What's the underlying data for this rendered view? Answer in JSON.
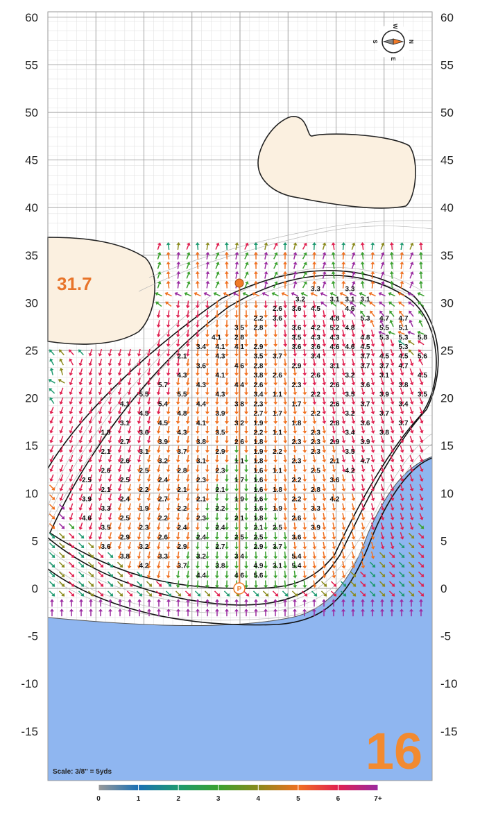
{
  "hole_number": "16",
  "green_depth": "31.7",
  "scale_text": "Scale: 3/8\" = 5yds",
  "y_axis_ticks": [
    "60",
    "55",
    "50",
    "45",
    "40",
    "35",
    "30",
    "25",
    "20",
    "15",
    "10",
    "5",
    "0",
    "-5",
    "-10",
    "-15"
  ],
  "legend": {
    "labels": [
      "0",
      "1",
      "2",
      "3",
      "4",
      "5",
      "6",
      "7+"
    ],
    "colors": [
      "#999999",
      "#1a6fb4",
      "#1e9a70",
      "#3aa12e",
      "#8a8a1c",
      "#f07020",
      "#e02050",
      "#9a2aa0"
    ]
  },
  "colors": {
    "water": "#8fb6f0",
    "bunker": "#fbf0e0",
    "grid_major": "#9a9a9a",
    "grid_minor": "#e3e3e3",
    "pin": "#f07a28",
    "hole_number": "#f28a30"
  },
  "icons": {
    "compass": "compass-icon",
    "pin": "pin-icon",
    "tee_marker": "p-marker-icon"
  },
  "compass_letters": [
    "W",
    "N",
    "E",
    "S"
  ],
  "slope_labels": [
    {
      "v": "3.3",
      "x": 10.0,
      "y": 31.1
    },
    {
      "v": "3.3",
      "x": 14.5,
      "y": 31.1
    },
    {
      "v": "3.2",
      "x": 8.0,
      "y": 30.0
    },
    {
      "v": "3.1",
      "x": 12.5,
      "y": 30.0
    },
    {
      "v": "3.1",
      "x": 14.5,
      "y": 30.0
    },
    {
      "v": "3.1",
      "x": 16.5,
      "y": 30.0
    },
    {
      "v": "2.6",
      "x": 5.0,
      "y": 29.0
    },
    {
      "v": "3.6",
      "x": 7.5,
      "y": 29.0
    },
    {
      "v": "4.5",
      "x": 10.0,
      "y": 29.0
    },
    {
      "v": "4.6",
      "x": 14.5,
      "y": 29.0
    },
    {
      "v": "2.2",
      "x": 2.5,
      "y": 28.0
    },
    {
      "v": "3.6",
      "x": 5.0,
      "y": 28.0
    },
    {
      "v": "4.8",
      "x": 12.5,
      "y": 28.0
    },
    {
      "v": "5.3",
      "x": 16.5,
      "y": 28.0
    },
    {
      "v": "4.7",
      "x": 19.0,
      "y": 28.0
    },
    {
      "v": "4.7",
      "x": 21.5,
      "y": 28.0
    },
    {
      "v": "3.5",
      "x": 0.0,
      "y": 27.0
    },
    {
      "v": "2.8",
      "x": 2.5,
      "y": 27.0
    },
    {
      "v": "3.6",
      "x": 7.5,
      "y": 27.0
    },
    {
      "v": "4.2",
      "x": 10.0,
      "y": 27.0
    },
    {
      "v": "5.2",
      "x": 12.5,
      "y": 27.0
    },
    {
      "v": "4.8",
      "x": 14.5,
      "y": 27.0
    },
    {
      "v": "5.5",
      "x": 19.0,
      "y": 27.0
    },
    {
      "v": "5.1",
      "x": 21.5,
      "y": 27.0
    },
    {
      "v": "4.1",
      "x": -3.0,
      "y": 26.0
    },
    {
      "v": "2.8",
      "x": 0.0,
      "y": 26.0
    },
    {
      "v": "3.5",
      "x": 7.5,
      "y": 26.0
    },
    {
      "v": "4.3",
      "x": 10.0,
      "y": 26.0
    },
    {
      "v": "4.3",
      "x": 12.5,
      "y": 26.0
    },
    {
      "v": "4.8",
      "x": 16.5,
      "y": 26.0
    },
    {
      "v": "5.3",
      "x": 19.0,
      "y": 26.0
    },
    {
      "v": "5.3",
      "x": 21.5,
      "y": 26.0
    },
    {
      "v": "5.8",
      "x": 24.0,
      "y": 26.0
    },
    {
      "v": "3.4",
      "x": -5.0,
      "y": 25.0
    },
    {
      "v": "4.1",
      "x": -2.5,
      "y": 25.0
    },
    {
      "v": "4.1",
      "x": 0.0,
      "y": 25.0
    },
    {
      "v": "2.9",
      "x": 2.5,
      "y": 25.0
    },
    {
      "v": "3.6",
      "x": 7.5,
      "y": 25.0
    },
    {
      "v": "3.6",
      "x": 10.0,
      "y": 25.0
    },
    {
      "v": "4.6",
      "x": 12.5,
      "y": 25.0
    },
    {
      "v": "4.6",
      "x": 14.5,
      "y": 25.0
    },
    {
      "v": "4.5",
      "x": 16.5,
      "y": 25.0
    },
    {
      "v": "5.3",
      "x": 21.5,
      "y": 25.0
    },
    {
      "v": "2.1",
      "x": -7.5,
      "y": 24.0
    },
    {
      "v": "4.3",
      "x": -2.5,
      "y": 24.0
    },
    {
      "v": "3.5",
      "x": 2.5,
      "y": 24.0
    },
    {
      "v": "3.7",
      "x": 5.0,
      "y": 24.0
    },
    {
      "v": "3.4",
      "x": 10.0,
      "y": 24.0
    },
    {
      "v": "3.7",
      "x": 16.5,
      "y": 24.0
    },
    {
      "v": "4.5",
      "x": 19.0,
      "y": 24.0
    },
    {
      "v": "4.5",
      "x": 21.5,
      "y": 24.0
    },
    {
      "v": "5.6",
      "x": 24.0,
      "y": 24.0
    },
    {
      "v": "3.6",
      "x": -5.0,
      "y": 23.0
    },
    {
      "v": "4.6",
      "x": 0.0,
      "y": 23.0
    },
    {
      "v": "2.8",
      "x": 2.5,
      "y": 23.0
    },
    {
      "v": "2.9",
      "x": 7.5,
      "y": 23.0
    },
    {
      "v": "3.1",
      "x": 12.5,
      "y": 23.0
    },
    {
      "v": "3.7",
      "x": 16.5,
      "y": 23.0
    },
    {
      "v": "3.7",
      "x": 19.0,
      "y": 23.0
    },
    {
      "v": "4.7",
      "x": 21.5,
      "y": 23.0
    },
    {
      "v": "4.3",
      "x": -7.5,
      "y": 22.0
    },
    {
      "v": "4.1",
      "x": -2.5,
      "y": 22.0
    },
    {
      "v": "3.8",
      "x": 2.5,
      "y": 22.0
    },
    {
      "v": "2.6",
      "x": 5.0,
      "y": 22.0
    },
    {
      "v": "2.6",
      "x": 10.0,
      "y": 22.0
    },
    {
      "v": "3.2",
      "x": 14.5,
      "y": 22.0
    },
    {
      "v": "3.1",
      "x": 19.0,
      "y": 22.0
    },
    {
      "v": "4.5",
      "x": 24.0,
      "y": 22.0
    },
    {
      "v": "5.7",
      "x": -10.0,
      "y": 21.0
    },
    {
      "v": "4.3",
      "x": -5.0,
      "y": 21.0
    },
    {
      "v": "4.4",
      "x": 0.0,
      "y": 21.0
    },
    {
      "v": "2.6",
      "x": 2.5,
      "y": 21.0
    },
    {
      "v": "2.3",
      "x": 7.5,
      "y": 21.0
    },
    {
      "v": "2.6",
      "x": 12.5,
      "y": 21.0
    },
    {
      "v": "3.6",
      "x": 16.5,
      "y": 21.0
    },
    {
      "v": "3.8",
      "x": 21.5,
      "y": 21.0
    },
    {
      "v": "5.5",
      "x": -12.5,
      "y": 20.0
    },
    {
      "v": "5.5",
      "x": -7.5,
      "y": 20.0
    },
    {
      "v": "4.3",
      "x": -2.5,
      "y": 20.0
    },
    {
      "v": "3.4",
      "x": 2.5,
      "y": 20.0
    },
    {
      "v": "1.1",
      "x": 5.0,
      "y": 20.0
    },
    {
      "v": "2.2",
      "x": 10.0,
      "y": 20.0
    },
    {
      "v": "3.5",
      "x": 14.5,
      "y": 20.0
    },
    {
      "v": "3.9",
      "x": 19.0,
      "y": 20.0
    },
    {
      "v": "3.5",
      "x": 24.0,
      "y": 20.0
    },
    {
      "v": "4.1",
      "x": -15.0,
      "y": 19.0
    },
    {
      "v": "5.4",
      "x": -10.0,
      "y": 19.0
    },
    {
      "v": "4.4",
      "x": -5.0,
      "y": 19.0
    },
    {
      "v": "3.8",
      "x": 0.0,
      "y": 19.0
    },
    {
      "v": "2.3",
      "x": 2.5,
      "y": 19.0
    },
    {
      "v": "1.7",
      "x": 7.5,
      "y": 19.0
    },
    {
      "v": "2.6",
      "x": 12.5,
      "y": 19.0
    },
    {
      "v": "3.7",
      "x": 16.5,
      "y": 19.0
    },
    {
      "v": "3.4",
      "x": 21.5,
      "y": 19.0
    },
    {
      "v": "4.5",
      "x": -12.5,
      "y": 18.0
    },
    {
      "v": "4.8",
      "x": -7.5,
      "y": 18.0
    },
    {
      "v": "3.9",
      "x": -2.5,
      "y": 18.0
    },
    {
      "v": "2.7",
      "x": 2.5,
      "y": 18.0
    },
    {
      "v": "1.7",
      "x": 5.0,
      "y": 18.0
    },
    {
      "v": "2.2",
      "x": 10.0,
      "y": 18.0
    },
    {
      "v": "3.2",
      "x": 14.5,
      "y": 18.0
    },
    {
      "v": "3.7",
      "x": 19.0,
      "y": 18.0
    },
    {
      "v": "3.1",
      "x": -15.0,
      "y": 17.0
    },
    {
      "v": "4.5",
      "x": -10.0,
      "y": 17.0
    },
    {
      "v": "4.1",
      "x": -5.0,
      "y": 17.0
    },
    {
      "v": "3.2",
      "x": 0.0,
      "y": 17.0
    },
    {
      "v": "1.9",
      "x": 2.5,
      "y": 17.0
    },
    {
      "v": "1.8",
      "x": 7.5,
      "y": 17.0
    },
    {
      "v": "2.8",
      "x": 12.5,
      "y": 17.0
    },
    {
      "v": "3.6",
      "x": 16.5,
      "y": 17.0
    },
    {
      "v": "3.7",
      "x": 21.5,
      "y": 17.0
    },
    {
      "v": "1.8",
      "x": -17.5,
      "y": 16.0
    },
    {
      "v": "3.6",
      "x": -12.5,
      "y": 16.0
    },
    {
      "v": "4.3",
      "x": -7.5,
      "y": 16.0
    },
    {
      "v": "3.5",
      "x": -2.5,
      "y": 16.0
    },
    {
      "v": "2.2",
      "x": 2.5,
      "y": 16.0
    },
    {
      "v": "1.1",
      "x": 5.0,
      "y": 16.0
    },
    {
      "v": "2.3",
      "x": 10.0,
      "y": 16.0
    },
    {
      "v": "3.4",
      "x": 14.5,
      "y": 16.0
    },
    {
      "v": "3.8",
      "x": 19.0,
      "y": 16.0
    },
    {
      "v": "2.7",
      "x": -15.0,
      "y": 15.0
    },
    {
      "v": "3.9",
      "x": -10.0,
      "y": 15.0
    },
    {
      "v": "3.8",
      "x": -5.0,
      "y": 15.0
    },
    {
      "v": "2.6",
      "x": 0.0,
      "y": 15.0
    },
    {
      "v": "1.8",
      "x": 2.5,
      "y": 15.0
    },
    {
      "v": "2.3",
      "x": 7.5,
      "y": 15.0
    },
    {
      "v": "2.3",
      "x": 10.0,
      "y": 15.0
    },
    {
      "v": "2.9",
      "x": 12.5,
      "y": 15.0
    },
    {
      "v": "3.9",
      "x": 16.5,
      "y": 15.0
    },
    {
      "v": "2.1",
      "x": -17.5,
      "y": 14.0
    },
    {
      "v": "3.1",
      "x": -12.5,
      "y": 14.0
    },
    {
      "v": "3.7",
      "x": -7.5,
      "y": 14.0
    },
    {
      "v": "2.9",
      "x": -2.5,
      "y": 14.0
    },
    {
      "v": "1.9",
      "x": 2.5,
      "y": 14.0
    },
    {
      "v": "2.2",
      "x": 5.0,
      "y": 14.0
    },
    {
      "v": "2.3",
      "x": 10.0,
      "y": 14.0
    },
    {
      "v": "3.5",
      "x": 14.5,
      "y": 14.0
    },
    {
      "v": "2.6",
      "x": -15.0,
      "y": 13.0
    },
    {
      "v": "3.2",
      "x": -10.0,
      "y": 13.0
    },
    {
      "v": "3.1",
      "x": -5.0,
      "y": 13.0
    },
    {
      "v": "1.1",
      "x": 0.0,
      "y": 13.0
    },
    {
      "v": "1.8",
      "x": 2.5,
      "y": 13.0
    },
    {
      "v": "2.3",
      "x": 7.5,
      "y": 13.0
    },
    {
      "v": "2.1",
      "x": 12.5,
      "y": 13.0
    },
    {
      "v": "4.7",
      "x": 16.5,
      "y": 13.0
    },
    {
      "v": "2.6",
      "x": -17.5,
      "y": 12.0
    },
    {
      "v": "2.5",
      "x": -12.5,
      "y": 12.0
    },
    {
      "v": "2.8",
      "x": -7.5,
      "y": 12.0
    },
    {
      "v": "2.3",
      "x": -2.5,
      "y": 12.0
    },
    {
      "v": "1.6",
      "x": 2.5,
      "y": 12.0
    },
    {
      "v": "1.1",
      "x": 5.0,
      "y": 12.0
    },
    {
      "v": "2.5",
      "x": 10.0,
      "y": 12.0
    },
    {
      "v": "4.2",
      "x": 14.5,
      "y": 12.0
    },
    {
      "v": "2.5",
      "x": -20.0,
      "y": 11.0
    },
    {
      "v": "2.5",
      "x": -15.0,
      "y": 11.0
    },
    {
      "v": "2.4",
      "x": -10.0,
      "y": 11.0
    },
    {
      "v": "2.3",
      "x": -5.0,
      "y": 11.0
    },
    {
      "v": "1.7",
      "x": 0.0,
      "y": 11.0
    },
    {
      "v": "1.6",
      "x": 2.5,
      "y": 11.0
    },
    {
      "v": "2.2",
      "x": 7.5,
      "y": 11.0
    },
    {
      "v": "3.6",
      "x": 12.5,
      "y": 11.0
    },
    {
      "v": "2.1",
      "x": -17.5,
      "y": 10.0
    },
    {
      "v": "2.2",
      "x": -12.5,
      "y": 10.0
    },
    {
      "v": "2.1",
      "x": -7.5,
      "y": 10.0
    },
    {
      "v": "2.1",
      "x": -2.5,
      "y": 10.0
    },
    {
      "v": "1.6",
      "x": 2.5,
      "y": 10.0
    },
    {
      "v": "1.8",
      "x": 5.0,
      "y": 10.0
    },
    {
      "v": "2.8",
      "x": 10.0,
      "y": 10.0
    },
    {
      "v": "3.9",
      "x": -20.0,
      "y": 9.0
    },
    {
      "v": "2.4",
      "x": -15.0,
      "y": 9.0
    },
    {
      "v": "2.7",
      "x": -10.0,
      "y": 9.0
    },
    {
      "v": "2.1",
      "x": -5.0,
      "y": 9.0
    },
    {
      "v": "1.9",
      "x": 0.0,
      "y": 9.0
    },
    {
      "v": "1.6",
      "x": 2.5,
      "y": 9.0
    },
    {
      "v": "2.2",
      "x": 7.5,
      "y": 9.0
    },
    {
      "v": "4.2",
      "x": 12.5,
      "y": 9.0
    },
    {
      "v": "3.3",
      "x": -17.5,
      "y": 8.0
    },
    {
      "v": "1.9",
      "x": -12.5,
      "y": 8.0
    },
    {
      "v": "2.2",
      "x": -7.5,
      "y": 8.0
    },
    {
      "v": "2.2",
      "x": -2.5,
      "y": 8.0
    },
    {
      "v": "1.6",
      "x": 2.5,
      "y": 8.0
    },
    {
      "v": "1.9",
      "x": 5.0,
      "y": 8.0
    },
    {
      "v": "3.3",
      "x": 10.0,
      "y": 8.0
    },
    {
      "v": "4.6",
      "x": -20.0,
      "y": 7.0
    },
    {
      "v": "2.5",
      "x": -15.0,
      "y": 7.0
    },
    {
      "v": "2.2",
      "x": -10.0,
      "y": 7.0
    },
    {
      "v": "2.3",
      "x": -5.0,
      "y": 7.0
    },
    {
      "v": "2.1",
      "x": 0.0,
      "y": 7.0
    },
    {
      "v": "1.8",
      "x": 2.5,
      "y": 7.0
    },
    {
      "v": "2.6",
      "x": 7.5,
      "y": 7.0
    },
    {
      "v": "3.5",
      "x": -17.5,
      "y": 6.0
    },
    {
      "v": "2.3",
      "x": -12.5,
      "y": 6.0
    },
    {
      "v": "2.4",
      "x": -7.5,
      "y": 6.0
    },
    {
      "v": "2.4",
      "x": -2.5,
      "y": 6.0
    },
    {
      "v": "2.1",
      "x": 2.5,
      "y": 6.0
    },
    {
      "v": "2.5",
      "x": 5.0,
      "y": 6.0
    },
    {
      "v": "3.9",
      "x": 10.0,
      "y": 6.0
    },
    {
      "v": "2.9",
      "x": -15.0,
      "y": 5.0
    },
    {
      "v": "2.6",
      "x": -10.0,
      "y": 5.0
    },
    {
      "v": "2.4",
      "x": -5.0,
      "y": 5.0
    },
    {
      "v": "2.5",
      "x": 0.0,
      "y": 5.0
    },
    {
      "v": "2.5",
      "x": 2.5,
      "y": 5.0
    },
    {
      "v": "3.6",
      "x": 7.5,
      "y": 5.0
    },
    {
      "v": "3.6",
      "x": -17.5,
      "y": 4.0
    },
    {
      "v": "3.2",
      "x": -12.5,
      "y": 4.0
    },
    {
      "v": "2.9",
      "x": -7.5,
      "y": 4.0
    },
    {
      "v": "2.7",
      "x": -2.5,
      "y": 4.0
    },
    {
      "v": "2.9",
      "x": 2.5,
      "y": 4.0
    },
    {
      "v": "3.7",
      "x": 5.0,
      "y": 4.0
    },
    {
      "v": "3.8",
      "x": -15.0,
      "y": 3.0
    },
    {
      "v": "3.3",
      "x": -10.0,
      "y": 3.0
    },
    {
      "v": "3.2",
      "x": -5.0,
      "y": 3.0
    },
    {
      "v": "3.4",
      "x": 0.0,
      "y": 3.0
    },
    {
      "v": "5.4",
      "x": 7.5,
      "y": 3.0
    },
    {
      "v": "4.2",
      "x": -12.5,
      "y": 2.0
    },
    {
      "v": "3.7",
      "x": -7.5,
      "y": 2.0
    },
    {
      "v": "3.8",
      "x": -2.5,
      "y": 2.0
    },
    {
      "v": "4.9",
      "x": 2.5,
      "y": 2.0
    },
    {
      "v": "3.1",
      "x": 5.0,
      "y": 2.0
    },
    {
      "v": "5.4",
      "x": 7.5,
      "y": 2.0
    },
    {
      "v": "4.4",
      "x": -5.0,
      "y": 1.0
    },
    {
      "v": "4.6",
      "x": 0.0,
      "y": 1.0
    },
    {
      "v": "5.6",
      "x": 2.5,
      "y": 1.0
    }
  ]
}
